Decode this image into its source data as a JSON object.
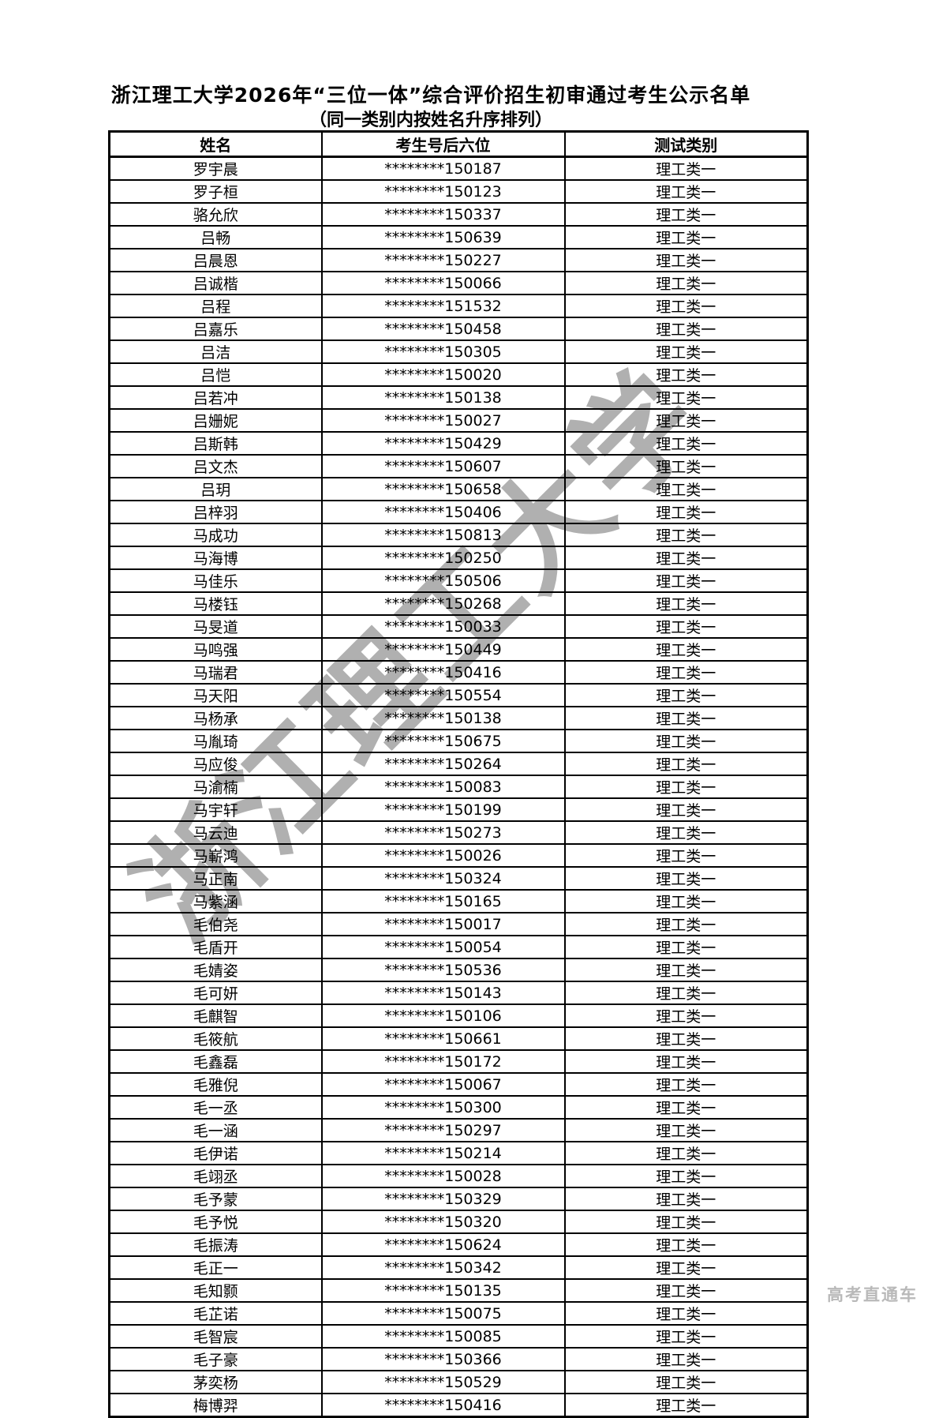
{
  "page": {
    "title": "浙江理工大学2026年“三位一体”综合评价招生初审通过考生公示名单",
    "subtitle": "（同一类别内按姓名升序排列）",
    "watermark": "浙江理工大学",
    "footer_brand": "高考直通车"
  },
  "colors": {
    "background": "#ffffff",
    "text": "#000000",
    "table_border": "#000000",
    "watermark_gray": "#a8a8a8",
    "footer_gray": "#b9b9b9"
  },
  "table": {
    "columns": [
      "姓名",
      "考生号后六位",
      "测试类别"
    ],
    "rows": [
      {
        "name": "罗宇晨",
        "number": "********150187",
        "category": "理工类一"
      },
      {
        "name": "罗子桓",
        "number": "********150123",
        "category": "理工类一"
      },
      {
        "name": "骆允欣",
        "number": "********150337",
        "category": "理工类一"
      },
      {
        "name": "吕畅",
        "number": "********150639",
        "category": "理工类一"
      },
      {
        "name": "吕晨恩",
        "number": "********150227",
        "category": "理工类一"
      },
      {
        "name": "吕诚楷",
        "number": "********150066",
        "category": "理工类一"
      },
      {
        "name": "吕程",
        "number": "********151532",
        "category": "理工类一"
      },
      {
        "name": "吕嘉乐",
        "number": "********150458",
        "category": "理工类一"
      },
      {
        "name": "吕洁",
        "number": "********150305",
        "category": "理工类一"
      },
      {
        "name": "吕恺",
        "number": "********150020",
        "category": "理工类一"
      },
      {
        "name": "吕若冲",
        "number": "********150138",
        "category": "理工类一"
      },
      {
        "name": "吕姗妮",
        "number": "********150027",
        "category": "理工类一"
      },
      {
        "name": "吕斯韩",
        "number": "********150429",
        "category": "理工类一"
      },
      {
        "name": "吕文杰",
        "number": "********150607",
        "category": "理工类一"
      },
      {
        "name": "吕玥",
        "number": "********150658",
        "category": "理工类一"
      },
      {
        "name": "吕梓羽",
        "number": "********150406",
        "category": "理工类一"
      },
      {
        "name": "马成功",
        "number": "********150813",
        "category": "理工类一"
      },
      {
        "name": "马海博",
        "number": "********150250",
        "category": "理工类一"
      },
      {
        "name": "马佳乐",
        "number": "********150506",
        "category": "理工类一"
      },
      {
        "name": "马楼钰",
        "number": "********150268",
        "category": "理工类一"
      },
      {
        "name": "马旻道",
        "number": "********150033",
        "category": "理工类一"
      },
      {
        "name": "马鸣强",
        "number": "********150449",
        "category": "理工类一"
      },
      {
        "name": "马瑞君",
        "number": "********150416",
        "category": "理工类一"
      },
      {
        "name": "马天阳",
        "number": "********150554",
        "category": "理工类一"
      },
      {
        "name": "马杨承",
        "number": "********150138",
        "category": "理工类一"
      },
      {
        "name": "马胤琦",
        "number": "********150675",
        "category": "理工类一"
      },
      {
        "name": "马应俊",
        "number": "********150264",
        "category": "理工类一"
      },
      {
        "name": "马渝楠",
        "number": "********150083",
        "category": "理工类一"
      },
      {
        "name": "马宇轩",
        "number": "********150199",
        "category": "理工类一"
      },
      {
        "name": "马云迪",
        "number": "********150273",
        "category": "理工类一"
      },
      {
        "name": "马嶄鸿",
        "number": "********150026",
        "category": "理工类一"
      },
      {
        "name": "马正南",
        "number": "********150324",
        "category": "理工类一"
      },
      {
        "name": "马紫涵",
        "number": "********150165",
        "category": "理工类一"
      },
      {
        "name": "毛伯尧",
        "number": "********150017",
        "category": "理工类一"
      },
      {
        "name": "毛盾开",
        "number": "********150054",
        "category": "理工类一"
      },
      {
        "name": "毛婧姿",
        "number": "********150536",
        "category": "理工类一"
      },
      {
        "name": "毛可妍",
        "number": "********150143",
        "category": "理工类一"
      },
      {
        "name": "毛麒智",
        "number": "********150106",
        "category": "理工类一"
      },
      {
        "name": "毛筱航",
        "number": "********150661",
        "category": "理工类一"
      },
      {
        "name": "毛鑫磊",
        "number": "********150172",
        "category": "理工类一"
      },
      {
        "name": "毛雅倪",
        "number": "********150067",
        "category": "理工类一"
      },
      {
        "name": "毛一丞",
        "number": "********150300",
        "category": "理工类一"
      },
      {
        "name": "毛一涵",
        "number": "********150297",
        "category": "理工类一"
      },
      {
        "name": "毛伊诺",
        "number": "********150214",
        "category": "理工类一"
      },
      {
        "name": "毛翊丞",
        "number": "********150028",
        "category": "理工类一"
      },
      {
        "name": "毛予蒙",
        "number": "********150329",
        "category": "理工类一"
      },
      {
        "name": "毛予悦",
        "number": "********150320",
        "category": "理工类一"
      },
      {
        "name": "毛振涛",
        "number": "********150624",
        "category": "理工类一"
      },
      {
        "name": "毛正一",
        "number": "********150342",
        "category": "理工类一"
      },
      {
        "name": "毛知颢",
        "number": "********150135",
        "category": "理工类一"
      },
      {
        "name": "毛芷诺",
        "number": "********150075",
        "category": "理工类一"
      },
      {
        "name": "毛智宸",
        "number": "********150085",
        "category": "理工类一"
      },
      {
        "name": "毛子豪",
        "number": "********150366",
        "category": "理工类一"
      },
      {
        "name": "茅奕杨",
        "number": "********150529",
        "category": "理工类一"
      },
      {
        "name": "梅博羿",
        "number": "********150416",
        "category": "理工类一"
      }
    ]
  }
}
